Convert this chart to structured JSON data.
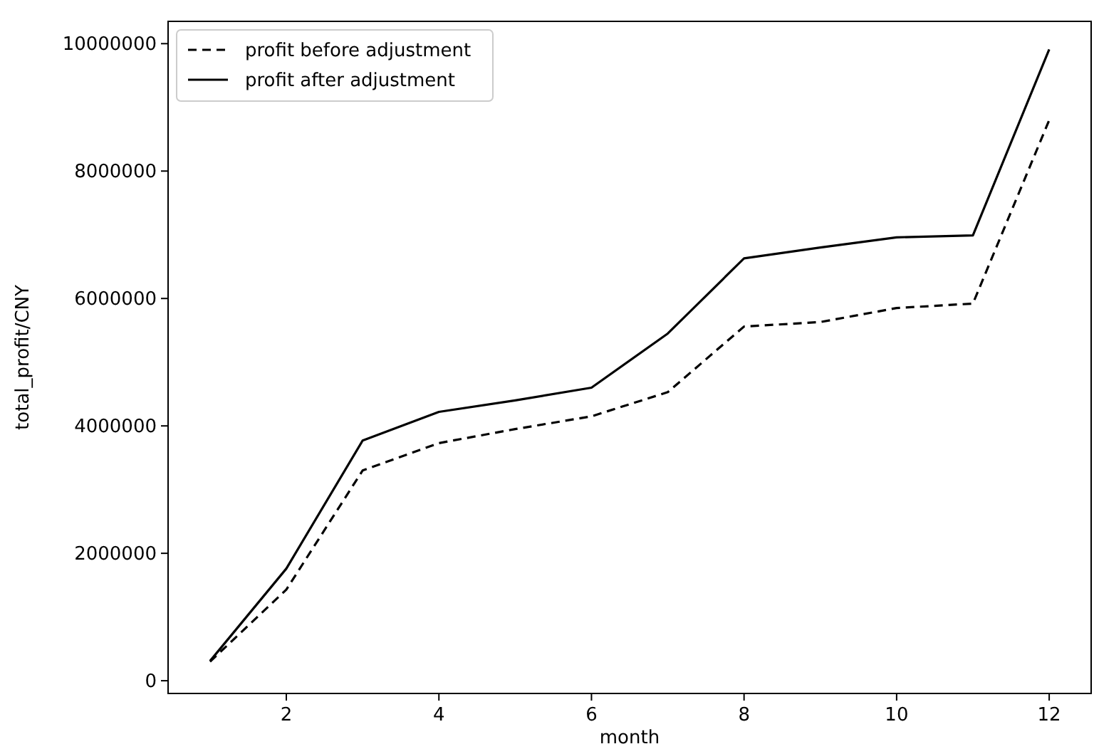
{
  "chart_data": {
    "type": "line",
    "xlabel": "month",
    "ylabel": "total_profit/CNY",
    "x": [
      1,
      2,
      3,
      4,
      5,
      6,
      7,
      8,
      9,
      10,
      11,
      12
    ],
    "series": [
      {
        "name": "profit before adjustment",
        "color": "#000000",
        "line_style": "dashed",
        "values": [
          300000,
          1430000,
          3300000,
          3730000,
          3950000,
          4150000,
          4530000,
          5560000,
          5630000,
          5850000,
          5920000,
          8800000
        ]
      },
      {
        "name": "profit after adjustment",
        "color": "#000000",
        "line_style": "solid",
        "values": [
          310000,
          1760000,
          3770000,
          4220000,
          4400000,
          4600000,
          5450000,
          6630000,
          6800000,
          6960000,
          6990000,
          9910000
        ]
      }
    ],
    "xlim": [
      0.45,
      12.55
    ],
    "xticks": [
      2,
      4,
      6,
      8,
      10,
      12
    ],
    "ylim": [
      -200000,
      10350000
    ],
    "yticks": [
      0,
      2000000,
      4000000,
      6000000,
      8000000,
      10000000
    ],
    "grid": false,
    "legend": "top left",
    "marker": "none"
  }
}
